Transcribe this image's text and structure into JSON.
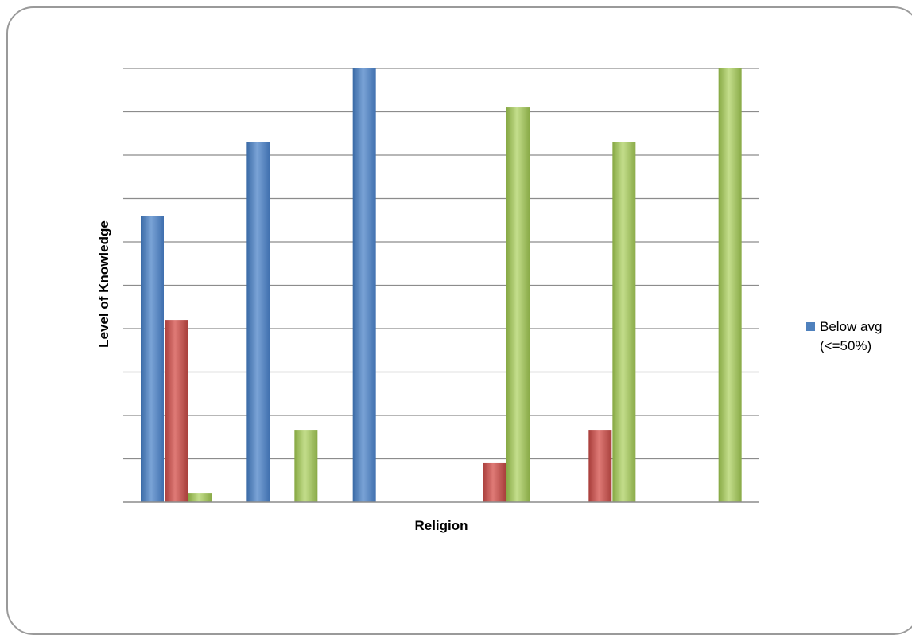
{
  "chart_data": {
    "type": "bar",
    "xlabel": "Religion",
    "ylabel": "Level of Knowledge",
    "ylim": [
      0,
      10
    ],
    "grid": true,
    "legend_position": "right",
    "categories": [
      "",
      "",
      "",
      "",
      "",
      ""
    ],
    "series": [
      {
        "name": "Below avg (<=50%)",
        "color": "#4F81BD",
        "values": [
          6.6,
          8.3,
          10,
          0,
          0,
          0
        ]
      },
      {
        "color": "#C0504D",
        "values": [
          4.2,
          0,
          0,
          0.9,
          1.65,
          0
        ]
      },
      {
        "color": "#9BBB59",
        "values": [
          0.2,
          1.65,
          0,
          9.1,
          8.3,
          10
        ]
      }
    ],
    "legend": {
      "lines": [
        "Below avg",
        "(<=50%)"
      ]
    }
  }
}
